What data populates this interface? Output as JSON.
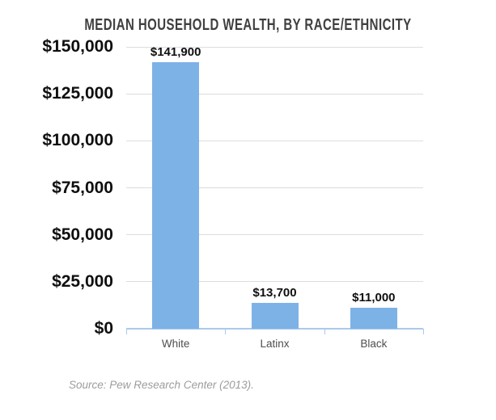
{
  "chart_data": {
    "type": "bar",
    "title": "MEDIAN HOUSEHOLD WEALTH, BY RACE/ETHNICITY",
    "categories": [
      "White",
      "Latinx",
      "Black"
    ],
    "values": [
      141900,
      13700,
      11000
    ],
    "value_labels": [
      "$141,900",
      "$13,700",
      "$11,000"
    ],
    "xlabel": "",
    "ylabel": "",
    "ylim": [
      0,
      150000
    ],
    "yticks": [
      0,
      25000,
      50000,
      75000,
      100000,
      125000,
      150000
    ],
    "ytick_labels": [
      "$0",
      "$25,000",
      "$50,000",
      "$75,000",
      "$100,000",
      "$125,000",
      "$150,000"
    ],
    "grid": "horizontal",
    "legend": "none",
    "bar_color": "#7DB2E6",
    "axis_color": "#ABC9ED",
    "gridline_color": "#DDDDDD",
    "title_color": "#3F3F3F"
  },
  "source_note": "Source: Pew Research Center (2013)."
}
